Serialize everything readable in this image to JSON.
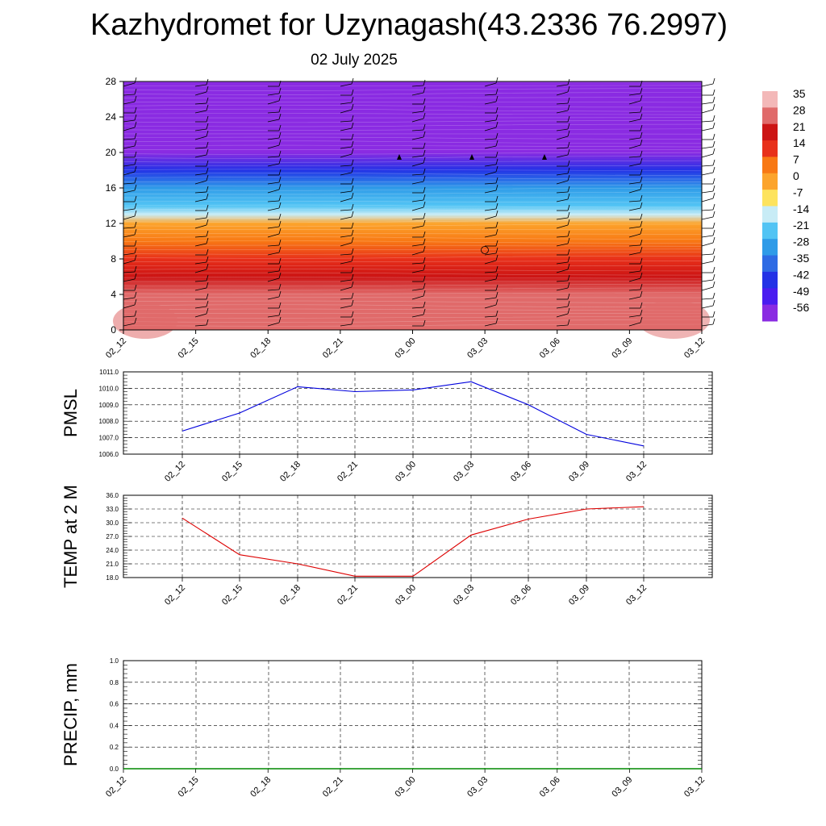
{
  "title": "Kazhydromet for Uzynagash(43.2336 76.2997)",
  "subtitle": "02 July 2025",
  "chart_data": [
    {
      "type": "heatmap",
      "yticks": [
        "0",
        "4",
        "8",
        "12",
        "16",
        "20",
        "24",
        "28"
      ],
      "ylim": [
        0,
        28
      ],
      "xticks": [
        "02_12",
        "02_15",
        "02_18",
        "02_21",
        "03_00",
        "03_03",
        "03_06",
        "03_09",
        "03_12"
      ],
      "colorbar_ticks": [
        "35",
        "28",
        "21",
        "14",
        "7",
        "0",
        "-7",
        "-14",
        "-21",
        "-28",
        "-35",
        "-42",
        "-49",
        "-56"
      ],
      "colorbar_colors": [
        "#f3b8b8",
        "#e06a6a",
        "#cc1414",
        "#e8301a",
        "#f87814",
        "#fca42c",
        "#fde35e",
        "#c8ecf6",
        "#52c4f4",
        "#2f9be8",
        "#2e6be4",
        "#2332e6",
        "#4a1cf0",
        "#8a2be2"
      ],
      "temperature_profile": [
        {
          "y": 0,
          "t": 30
        },
        {
          "y": 2,
          "t": 29
        },
        {
          "y": 4,
          "t": 26
        },
        {
          "y": 6,
          "t": 21
        },
        {
          "y": 8,
          "t": 15
        },
        {
          "y": 10,
          "t": 8
        },
        {
          "y": 12,
          "t": 1
        },
        {
          "y": 13,
          "t": -12
        },
        {
          "y": 14,
          "t": -18
        },
        {
          "y": 16,
          "t": -30
        },
        {
          "y": 18,
          "t": -44
        },
        {
          "y": 20,
          "t": -56
        },
        {
          "y": 21,
          "t": -60
        },
        {
          "y": 22,
          "t": -58
        },
        {
          "y": 24,
          "t": -62
        },
        {
          "y": 28,
          "t": -64
        }
      ]
    },
    {
      "type": "line",
      "ylabel": "PMSL",
      "ylim": [
        1006.0,
        1011.0
      ],
      "yticks": [
        "1011.0",
        "1010.0",
        "1009.0",
        "1008.0",
        "1007.0",
        "1006.0"
      ],
      "categories": [
        "02_12",
        "02_15",
        "02_18",
        "02_21",
        "03_00",
        "03_03",
        "03_06",
        "03_09",
        "03_12"
      ],
      "series": [
        {
          "values": [
            1007.4,
            1008.5,
            1010.1,
            1009.8,
            1009.9,
            1010.4,
            1009.0,
            1007.2,
            1006.5
          ],
          "color": "#0000dd"
        }
      ]
    },
    {
      "type": "line",
      "ylabel": "TEMP at 2 M",
      "ylim": [
        18.0,
        36.0
      ],
      "yticks": [
        "36.0",
        "33.0",
        "30.0",
        "27.0",
        "24.0",
        "21.0",
        "18.0"
      ],
      "categories": [
        "02_12",
        "02_15",
        "02_18",
        "02_21",
        "03_00",
        "03_03",
        "03_06",
        "03_09",
        "03_12"
      ],
      "series": [
        {
          "values": [
            31.0,
            23.0,
            21.0,
            18.3,
            18.3,
            27.3,
            30.8,
            33.0,
            33.5
          ],
          "color": "#dd0000"
        }
      ]
    },
    {
      "type": "line",
      "ylabel": "PRECIP, mm",
      "ylim": [
        0.0,
        1.0
      ],
      "yticks": [
        "1.0",
        "0.8",
        "0.6",
        "0.4",
        "0.2",
        "0.0"
      ],
      "categories": [
        "02_12",
        "02_15",
        "02_18",
        "02_21",
        "03_00",
        "03_03",
        "03_06",
        "03_09",
        "03_12"
      ],
      "series": [
        {
          "values": [
            0,
            0,
            0,
            0,
            0,
            0,
            0,
            0,
            0
          ],
          "color": "#008800"
        }
      ]
    }
  ]
}
